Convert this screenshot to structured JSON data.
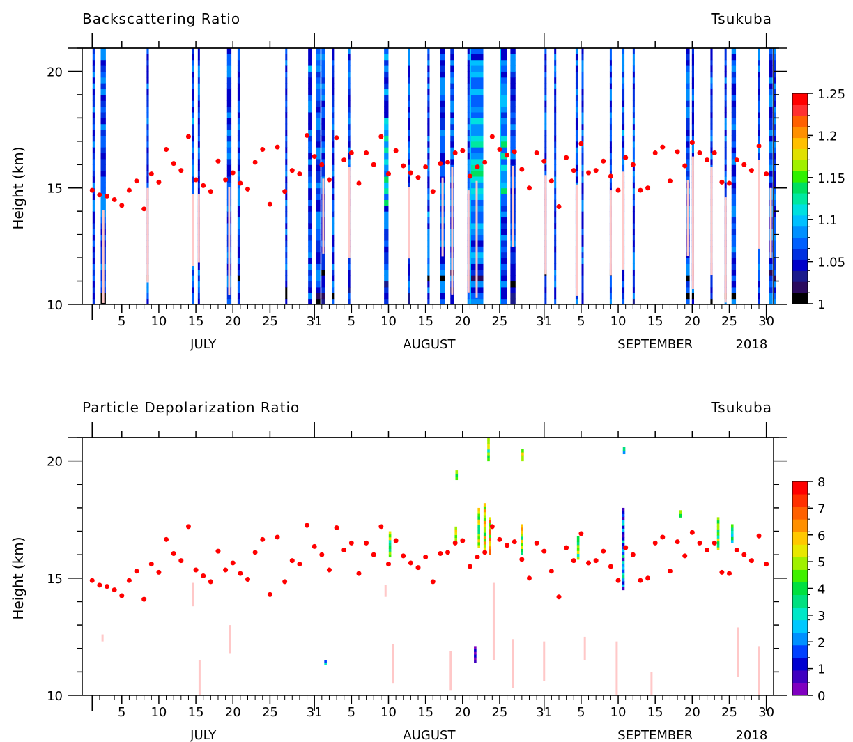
{
  "chart_data": [
    {
      "type": "heatmap",
      "title": "Backscattering Ratio",
      "location": "Tsukuba",
      "ylabel": "Height (km)",
      "ylim": [
        10,
        21
      ],
      "yticks": [
        "10",
        "15",
        "20"
      ],
      "xlim": [
        0.5,
        92
      ],
      "xticks": [
        {
          "day": 1,
          "label": ""
        },
        {
          "day": 5,
          "label": "5"
        },
        {
          "day": 10,
          "label": "10"
        },
        {
          "day": 15,
          "label": "15"
        },
        {
          "day": 20,
          "label": "20"
        },
        {
          "day": 25,
          "label": "25"
        },
        {
          "day": 31,
          "label": "31"
        },
        {
          "day": 36,
          "label": "5"
        },
        {
          "day": 41,
          "label": "10"
        },
        {
          "day": 46,
          "label": "15"
        },
        {
          "day": 51,
          "label": "20"
        },
        {
          "day": 56,
          "label": "25"
        },
        {
          "day": 62,
          "label": "31"
        },
        {
          "day": 67,
          "label": "5"
        },
        {
          "day": 72,
          "label": "10"
        },
        {
          "day": 77,
          "label": "15"
        },
        {
          "day": 82,
          "label": "20"
        },
        {
          "day": 87,
          "label": "25"
        },
        {
          "day": 92,
          "label": "30"
        }
      ],
      "month_labels": [
        {
          "day": 16,
          "label": "JULY"
        },
        {
          "day": 46.5,
          "label": "AUGUST"
        },
        {
          "day": 77,
          "label": "SEPTEMBER"
        },
        {
          "day": 90,
          "label": "2018"
        }
      ],
      "colorbar": {
        "ticks": [
          "1",
          "1.05",
          "1.1",
          "1.15",
          "1.2",
          "1.25"
        ],
        "min": 1,
        "max": 1.25,
        "colors": [
          "#000000",
          "#2a0a5e",
          "#1a1a8c",
          "#0000c8",
          "#0030e0",
          "#0060ff",
          "#0090ff",
          "#00c0ff",
          "#00e0e0",
          "#00e8a0",
          "#00e060",
          "#30f000",
          "#a0f000",
          "#e0e000",
          "#ffc000",
          "#ff9000",
          "#ff6000",
          "#ff3030",
          "#ff0000"
        ]
      },
      "tropopause_km": [
        14.9,
        14.7,
        14.65,
        14.5,
        14.25,
        14.9,
        15.3,
        14.1,
        15.6,
        15.25,
        16.65,
        16.05,
        15.75,
        17.2,
        15.35,
        15.1,
        14.85,
        16.15,
        15.35,
        15.65,
        15.2,
        14.95,
        16.1,
        16.65,
        14.3,
        16.75,
        14.85,
        15.75,
        15.6,
        17.25,
        16.35,
        16.0,
        15.35,
        17.15,
        16.2,
        16.5,
        15.2,
        16.5,
        16.0,
        17.2,
        15.6,
        16.6,
        15.95,
        15.65,
        15.45,
        15.9,
        14.85,
        16.05,
        16.1,
        16.5,
        16.6,
        15.5,
        15.9,
        16.1,
        17.2,
        16.65,
        16.4,
        16.55,
        15.8,
        15.0,
        16.5,
        16.15,
        15.3,
        14.2,
        16.3,
        15.75,
        16.9,
        15.65,
        15.75,
        16.15,
        15.5,
        14.9,
        16.3,
        16.0,
        14.9,
        15.0,
        16.5,
        16.75,
        15.3,
        16.55,
        15.95,
        16.95,
        16.5,
        16.2,
        16.5,
        15.25,
        15.2,
        16.2,
        16.0,
        15.75,
        16.8,
        15.6
      ],
      "observations": [
        {
          "day": 1.2,
          "w": 0.3,
          "intensity": 0.3
        },
        {
          "day": 2.5,
          "w": 0.7,
          "intensity": 0.3
        },
        {
          "day": 8.5,
          "w": 0.3,
          "intensity": 0.25
        },
        {
          "day": 14.6,
          "w": 0.3,
          "intensity": 0.35
        },
        {
          "day": 15.4,
          "w": 0.25,
          "intensity": 0.3
        },
        {
          "day": 19.5,
          "w": 0.6,
          "intensity": 0.3
        },
        {
          "day": 20.8,
          "w": 0.35,
          "intensity": 0.3
        },
        {
          "day": 27.2,
          "w": 0.25,
          "intensity": 0.3
        },
        {
          "day": 30.4,
          "w": 0.5,
          "intensity": 0.35
        },
        {
          "day": 31.5,
          "w": 0.6,
          "intensity": 0.3
        },
        {
          "day": 32.2,
          "w": 0.5,
          "intensity": 0.3
        },
        {
          "day": 33.5,
          "w": 0.3,
          "intensity": 0.25
        },
        {
          "day": 35.7,
          "w": 0.25,
          "intensity": 0.35
        },
        {
          "day": 40.7,
          "w": 0.6,
          "intensity": 0.4
        },
        {
          "day": 43.8,
          "w": 0.2,
          "intensity": 0.25
        },
        {
          "day": 46.4,
          "w": 0.3,
          "intensity": 0.35
        },
        {
          "day": 48.3,
          "w": 0.7,
          "intensity": 0.3
        },
        {
          "day": 49.6,
          "w": 0.5,
          "intensity": 0.35
        },
        {
          "day": 51.8,
          "w": 0.3,
          "intensity": 0.3
        },
        {
          "day": 52.9,
          "w": 1.8,
          "intensity": 0.45
        },
        {
          "day": 56.5,
          "w": 0.9,
          "intensity": 0.4
        },
        {
          "day": 57.8,
          "w": 0.7,
          "intensity": 0.3
        },
        {
          "day": 62.2,
          "w": 0.25,
          "intensity": 0.3
        },
        {
          "day": 63.5,
          "w": 0.25,
          "intensity": 0.25
        },
        {
          "day": 66.4,
          "w": 0.3,
          "intensity": 0.3
        },
        {
          "day": 67.2,
          "w": 0.25,
          "intensity": 0.3
        },
        {
          "day": 71.0,
          "w": 0.2,
          "intensity": 0.25
        },
        {
          "day": 72.7,
          "w": 0.3,
          "intensity": 0.35
        },
        {
          "day": 74.1,
          "w": 0.25,
          "intensity": 0.3
        },
        {
          "day": 81.4,
          "w": 0.5,
          "intensity": 0.3
        },
        {
          "day": 82.1,
          "w": 0.3,
          "intensity": 0.3
        },
        {
          "day": 84.6,
          "w": 0.3,
          "intensity": 0.3
        },
        {
          "day": 86.5,
          "w": 0.25,
          "intensity": 0.3
        },
        {
          "day": 87.6,
          "w": 0.6,
          "intensity": 0.3
        },
        {
          "day": 91.0,
          "w": 0.2,
          "intensity": 0.25
        },
        {
          "day": 92.6,
          "w": 0.5,
          "intensity": 0.3
        },
        {
          "day": 93.2,
          "w": 0.3,
          "intensity": 0.3
        }
      ],
      "below_tropopause_color": "#ffc8c8"
    },
    {
      "type": "heatmap",
      "title": "Particle Depolarization Ratio",
      "location": "Tsukuba",
      "ylabel": "Height (km)",
      "ylim": [
        10,
        21
      ],
      "yticks": [
        "10",
        "15",
        "20"
      ],
      "colorbar": {
        "ticks": [
          "0",
          "1",
          "2",
          "3",
          "4",
          "5",
          "6",
          "7",
          "8"
        ],
        "min": 0,
        "max": 8,
        "colors": [
          "#8000c0",
          "#4000c0",
          "#0000d0",
          "#0040ff",
          "#0090ff",
          "#00c8ff",
          "#00e8c8",
          "#00e080",
          "#00e040",
          "#40f000",
          "#a0f000",
          "#e8e800",
          "#ffc800",
          "#ff9000",
          "#ff6000",
          "#ff3000",
          "#ff0000"
        ]
      },
      "highlights": [
        {
          "day": 41.2,
          "y0": 15.9,
          "y1": 17.0,
          "value": 4.5
        },
        {
          "day": 50.1,
          "y0": 16.5,
          "y1": 17.2,
          "value": 5.5
        },
        {
          "day": 50.2,
          "y0": 19.2,
          "y1": 19.6,
          "value": 4.5
        },
        {
          "day": 53.2,
          "y0": 16.3,
          "y1": 18.0,
          "value": 4.8
        },
        {
          "day": 54.0,
          "y0": 16.2,
          "y1": 18.2,
          "value": 5.2
        },
        {
          "day": 54.7,
          "y0": 16.0,
          "y1": 17.6,
          "value": 6.0
        },
        {
          "day": 54.5,
          "y0": 20.0,
          "y1": 21.0,
          "value": 4.2
        },
        {
          "day": 52.7,
          "y0": 11.4,
          "y1": 12.1,
          "value": 1.2
        },
        {
          "day": 59.0,
          "y0": 16.0,
          "y1": 17.3,
          "value": 5.0
        },
        {
          "day": 59.1,
          "y0": 20.0,
          "y1": 20.5,
          "value": 4.5
        },
        {
          "day": 66.6,
          "y0": 15.8,
          "y1": 16.8,
          "value": 4.5
        },
        {
          "day": 72.7,
          "y0": 14.5,
          "y1": 18.0,
          "value": 2.0
        },
        {
          "day": 72.8,
          "y0": 20.3,
          "y1": 20.6,
          "value": 3.0
        },
        {
          "day": 80.4,
          "y0": 17.6,
          "y1": 17.9,
          "value": 4.0
        },
        {
          "day": 85.5,
          "y0": 16.2,
          "y1": 17.6,
          "value": 4.5
        },
        {
          "day": 87.4,
          "y0": 16.5,
          "y1": 17.3,
          "value": 3.5
        },
        {
          "day": 32.5,
          "y0": 11.3,
          "y1": 11.5,
          "value": 2.0
        }
      ],
      "low_depolarization": [
        {
          "day": 14.6,
          "y0": 13.8,
          "y1": 14.8
        },
        {
          "day": 15.5,
          "y0": 10.0,
          "y1": 11.5
        },
        {
          "day": 19.6,
          "y0": 11.8,
          "y1": 13.0
        },
        {
          "day": 40.6,
          "y0": 14.2,
          "y1": 14.7
        },
        {
          "day": 41.6,
          "y0": 10.5,
          "y1": 12.2
        },
        {
          "day": 49.4,
          "y0": 10.2,
          "y1": 11.9
        },
        {
          "day": 55.2,
          "y0": 11.5,
          "y1": 14.8
        },
        {
          "day": 57.8,
          "y0": 10.3,
          "y1": 12.4
        },
        {
          "day": 62.0,
          "y0": 10.6,
          "y1": 12.3
        },
        {
          "day": 67.5,
          "y0": 11.5,
          "y1": 12.5
        },
        {
          "day": 71.8,
          "y0": 10.0,
          "y1": 12.3
        },
        {
          "day": 88.2,
          "y0": 10.8,
          "y1": 12.9
        },
        {
          "day": 91.0,
          "y0": 10.0,
          "y1": 12.1
        },
        {
          "day": 2.4,
          "y0": 12.3,
          "y1": 12.6
        },
        {
          "day": 76.5,
          "y0": 10.0,
          "y1": 11.0
        }
      ]
    }
  ]
}
